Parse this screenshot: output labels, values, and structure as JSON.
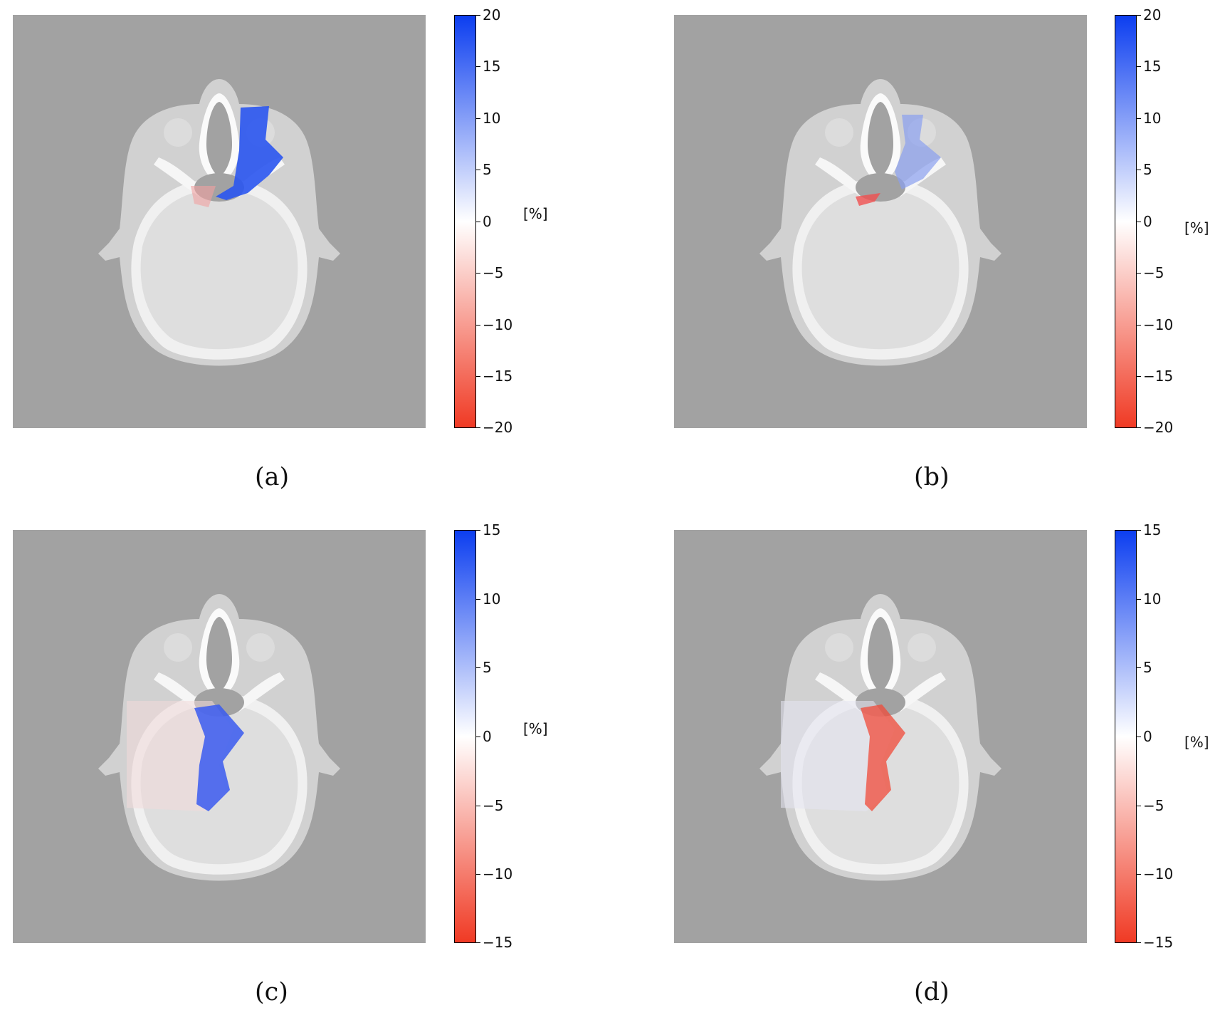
{
  "panels": [
    {
      "id": "a",
      "caption": "(a)",
      "unit": "[%]",
      "ticks": [
        "20",
        "15",
        "10",
        "5",
        "0",
        "−5",
        "−10",
        "−15",
        "−20"
      ],
      "colors": {
        "pos": "#0c3ef0",
        "neg": "#f03a24"
      }
    },
    {
      "id": "b",
      "caption": "(b)",
      "unit": "[%]",
      "ticks": [
        "20",
        "15",
        "10",
        "5",
        "0",
        "−5",
        "−10",
        "−15",
        "−20"
      ],
      "colors": {
        "pos": "#0c3ef0",
        "neg": "#f03a24"
      }
    },
    {
      "id": "c",
      "caption": "(c)",
      "unit": "[%]",
      "ticks": [
        "15",
        "10",
        "5",
        "0",
        "−5",
        "−10",
        "−15"
      ],
      "colors": {
        "pos": "#0c3ef0",
        "neg": "#f03a24"
      }
    },
    {
      "id": "d",
      "caption": "(d)",
      "unit": "[%]",
      "ticks": [
        "15",
        "10",
        "5",
        "0",
        "−5",
        "−10",
        "−15"
      ],
      "colors": {
        "pos": "#0c3ef0",
        "neg": "#f03a24"
      }
    }
  ],
  "background_color": "#a2a2a2"
}
